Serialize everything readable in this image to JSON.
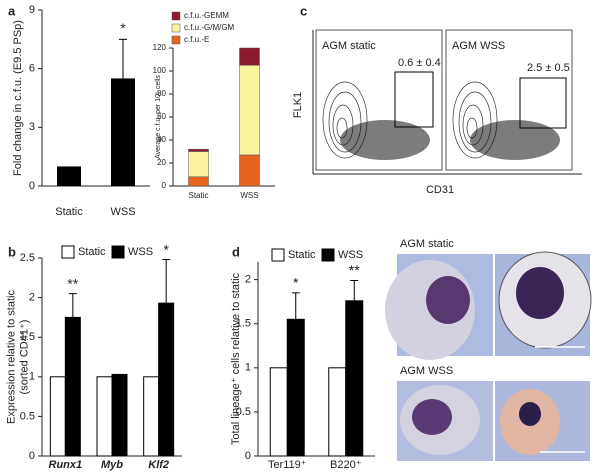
{
  "chart_data": [
    {
      "type": "bar",
      "panel": "a",
      "ylabel": [
        "Fold change in c.f.u. (E9.5 PSp)"
      ],
      "categories": [
        "Static",
        "WSS"
      ],
      "values": [
        1,
        5.5
      ],
      "errors": [
        null,
        2.0
      ],
      "annotations": [
        null,
        "*"
      ],
      "color": "#000000",
      "ylim": [
        0,
        9
      ],
      "yticks": [
        0,
        3,
        6,
        9
      ]
    },
    {
      "type": "stacked_bar",
      "ylabel": [
        "Average c.f.u. per 10⁵ cells"
      ],
      "categories": [
        "Static",
        "WSS"
      ],
      "series": [
        {
          "name": "c.f.u.-E",
          "color": "#e8641e",
          "values": [
            8,
            27
          ]
        },
        {
          "name": "c.f.u.-G/M/GM",
          "color": "#fbf3a0",
          "values": [
            22,
            78
          ]
        },
        {
          "name": "c.f.u.-GEMM",
          "color": "#8b1a2c",
          "values": [
            2,
            15
          ]
        }
      ],
      "ylim": [
        0,
        120
      ],
      "yticks": [
        0,
        20,
        40,
        60,
        80,
        100,
        120
      ]
    },
    {
      "type": "grouped_bar",
      "panel": "b",
      "ylabel": [
        "Expression relative to static",
        "(sorted CD41⁺)"
      ],
      "categories": [
        "Runx1",
        "Myb",
        "Klf2"
      ],
      "series": [
        {
          "name": "Static",
          "color": "#ffffff",
          "values": [
            1,
            1,
            1
          ]
        },
        {
          "name": "WSS",
          "color": "#000000",
          "values": [
            1.75,
            1.03,
            1.93
          ],
          "errors": [
            0.3,
            null,
            0.55
          ]
        }
      ],
      "annotations": [
        "**",
        null,
        "*"
      ],
      "ylim": [
        0,
        2.5
      ],
      "yticks": [
        0,
        0.5,
        1,
        1.5,
        2,
        2.5
      ]
    },
    {
      "type": "grouped_bar",
      "panel": "d",
      "ylabel": [
        "Total lineage⁺ cells relative to static"
      ],
      "categories": [
        "Ter119⁺",
        "B220⁺"
      ],
      "series": [
        {
          "name": "Static",
          "color": "#ffffff",
          "values": [
            1,
            1
          ]
        },
        {
          "name": "WSS",
          "color": "#000000",
          "values": [
            1.55,
            1.76
          ],
          "errors": [
            0.3,
            0.23
          ]
        }
      ],
      "annotations": [
        "*",
        "**"
      ],
      "ylim": [
        0,
        2.2
      ],
      "yticks": [
        0,
        0.5,
        1,
        1.5,
        2
      ]
    }
  ],
  "flow_cytometry": {
    "panel": "c",
    "ylabel": "FLK1",
    "xlabel": "CD31",
    "plots": [
      {
        "title": "AGM static",
        "gate": "0.6 ± 0.4"
      },
      {
        "title": "AGM WSS",
        "gate": "2.5 ± 0.5"
      }
    ]
  },
  "micrographs": [
    {
      "title": "AGM static"
    },
    {
      "title": "AGM WSS"
    }
  ]
}
